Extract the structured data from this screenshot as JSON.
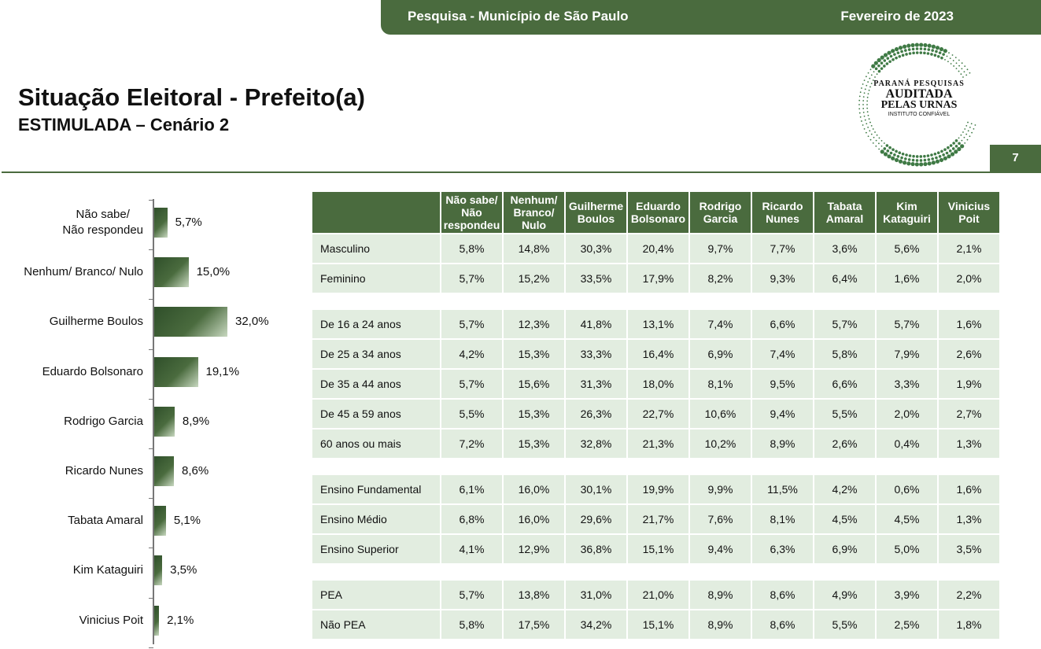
{
  "header": {
    "survey": "Pesquisa - Município de São Paulo",
    "date": "Fevereiro de 2023",
    "page_number": "7"
  },
  "title": "Situação Eleitoral - Prefeito(a)",
  "subtitle": "ESTIMULADA – Cenário 2",
  "logo": {
    "line1": "PARANÁ PESQUISAS",
    "line2": "AUDITADA",
    "line3": "PELAS URNAS",
    "line4": "INSTITUTO CONFIÁVEL"
  },
  "chart_data": [
    {
      "type": "bar",
      "orientation": "horizontal",
      "categories": [
        "Não sabe/\nNão respondeu",
        "Nenhum/ Branco/ Nulo",
        "Guilherme Boulos",
        "Eduardo Bolsonaro",
        "Rodrigo Garcia",
        "Ricardo Nunes",
        "Tabata Amaral",
        "Kim Kataguiri",
        "Vinicius Poit"
      ],
      "values": [
        5.7,
        15.0,
        32.0,
        19.1,
        8.9,
        8.6,
        5.1,
        3.5,
        2.1
      ],
      "value_labels": [
        "5,7%",
        "15,0%",
        "32,0%",
        "19,1%",
        "8,9%",
        "8,6%",
        "5,1%",
        "3,5%",
        "2,1%"
      ],
      "colors": {
        "bar_dark": "#2f4f2a",
        "bar_light": "#c8d8c0"
      }
    },
    {
      "type": "table",
      "columns": [
        "",
        "Não sabe/ Não respondeu",
        "Nenhum/ Branco/ Nulo",
        "Guilherme Boulos",
        "Eduardo Bolsonaro",
        "Rodrigo Garcia",
        "Ricardo Nunes",
        "Tabata Amaral",
        "Kim Kataguiri",
        "Vinicius Poit"
      ],
      "groups": [
        [
          [
            "Masculino",
            "5,8%",
            "14,8%",
            "30,3%",
            "20,4%",
            "9,7%",
            "7,7%",
            "3,6%",
            "5,6%",
            "2,1%"
          ],
          [
            "Feminino",
            "5,7%",
            "15,2%",
            "33,5%",
            "17,9%",
            "8,2%",
            "9,3%",
            "6,4%",
            "1,6%",
            "2,0%"
          ]
        ],
        [
          [
            "De 16 a 24 anos",
            "5,7%",
            "12,3%",
            "41,8%",
            "13,1%",
            "7,4%",
            "6,6%",
            "5,7%",
            "5,7%",
            "1,6%"
          ],
          [
            "De 25 a 34 anos",
            "4,2%",
            "15,3%",
            "33,3%",
            "16,4%",
            "6,9%",
            "7,4%",
            "5,8%",
            "7,9%",
            "2,6%"
          ],
          [
            "De 35 a 44 anos",
            "5,7%",
            "15,6%",
            "31,3%",
            "18,0%",
            "8,1%",
            "9,5%",
            "6,6%",
            "3,3%",
            "1,9%"
          ],
          [
            "De 45 a 59 anos",
            "5,5%",
            "15,3%",
            "26,3%",
            "22,7%",
            "10,6%",
            "9,4%",
            "5,5%",
            "2,0%",
            "2,7%"
          ],
          [
            "60 anos ou mais",
            "7,2%",
            "15,3%",
            "32,8%",
            "21,3%",
            "10,2%",
            "8,9%",
            "2,6%",
            "0,4%",
            "1,3%"
          ]
        ],
        [
          [
            "Ensino Fundamental",
            "6,1%",
            "16,0%",
            "30,1%",
            "19,9%",
            "9,9%",
            "11,5%",
            "4,2%",
            "0,6%",
            "1,6%"
          ],
          [
            "Ensino Médio",
            "6,8%",
            "16,0%",
            "29,6%",
            "21,7%",
            "7,6%",
            "8,1%",
            "4,5%",
            "4,5%",
            "1,3%"
          ],
          [
            "Ensino Superior",
            "4,1%",
            "12,9%",
            "36,8%",
            "15,1%",
            "9,4%",
            "6,3%",
            "6,9%",
            "5,0%",
            "3,5%"
          ]
        ],
        [
          [
            "PEA",
            "5,7%",
            "13,8%",
            "31,0%",
            "21,0%",
            "8,9%",
            "8,6%",
            "4,9%",
            "3,9%",
            "2,2%"
          ],
          [
            "Não PEA",
            "5,8%",
            "17,5%",
            "34,2%",
            "15,1%",
            "8,9%",
            "8,6%",
            "5,5%",
            "2,5%",
            "1,8%"
          ]
        ]
      ]
    }
  ],
  "colors": {
    "accent": "#4a6b3e",
    "cell_bg": "#e2ede0"
  }
}
